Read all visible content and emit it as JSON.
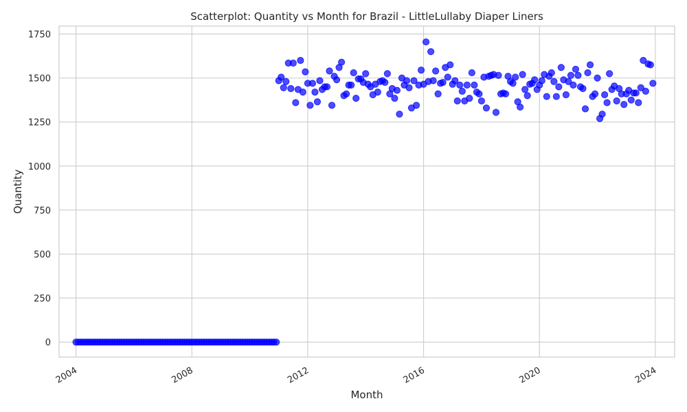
{
  "chart_data": {
    "type": "scatter",
    "title": "Scatterplot: Quantity vs Month for Brazil - LittleLullaby Diaper Liners",
    "xlabel": "Month",
    "ylabel": "Quantity",
    "xlim": [
      "2003-06",
      "2024-09"
    ],
    "ylim": [
      -85,
      1795
    ],
    "x_ticks": [
      "2004",
      "2008",
      "2012",
      "2016",
      "2020",
      "2024"
    ],
    "y_ticks": [
      0,
      250,
      500,
      750,
      1000,
      1250,
      1500,
      1750
    ],
    "grid": true,
    "legend": "none",
    "marker_color": "#0000ff",
    "series": [
      {
        "x": [
          "2004-01",
          "2004-02",
          "2004-03",
          "2004-04",
          "2004-05",
          "2004-06",
          "2004-07",
          "2004-08",
          "2004-09",
          "2004-10",
          "2004-11",
          "2004-12",
          "2005-01",
          "2005-02",
          "2005-03",
          "2005-04",
          "2005-05",
          "2005-06",
          "2005-07",
          "2005-08",
          "2005-09",
          "2005-10",
          "2005-11",
          "2005-12",
          "2006-01",
          "2006-02",
          "2006-03",
          "2006-04",
          "2006-05",
          "2006-06",
          "2006-07",
          "2006-08",
          "2006-09",
          "2006-10",
          "2006-11",
          "2006-12",
          "2007-01",
          "2007-02",
          "2007-03",
          "2007-04",
          "2007-05",
          "2007-06",
          "2007-07",
          "2007-08",
          "2007-09",
          "2007-10",
          "2007-11",
          "2007-12",
          "2008-01",
          "2008-02",
          "2008-03",
          "2008-04",
          "2008-05",
          "2008-06",
          "2008-07",
          "2008-08",
          "2008-09",
          "2008-10",
          "2008-11",
          "2008-12",
          "2009-01",
          "2009-02",
          "2009-03",
          "2009-04",
          "2009-05",
          "2009-06",
          "2009-07",
          "2009-08",
          "2009-09",
          "2009-10",
          "2009-11",
          "2009-12",
          "2010-01",
          "2010-02",
          "2010-03",
          "2010-04",
          "2010-05",
          "2010-06",
          "2010-07",
          "2010-08",
          "2010-09",
          "2010-10",
          "2010-11",
          "2010-12",
          "2011-01",
          "2011-02",
          "2011-03",
          "2011-04",
          "2011-05",
          "2011-06",
          "2011-07",
          "2011-08",
          "2011-09",
          "2011-10",
          "2011-11",
          "2011-12",
          "2012-01",
          "2012-02",
          "2012-03",
          "2012-04",
          "2012-05",
          "2012-06",
          "2012-07",
          "2012-08",
          "2012-09",
          "2012-10",
          "2012-11",
          "2012-12",
          "2013-01",
          "2013-02",
          "2013-03",
          "2013-04",
          "2013-05",
          "2013-06",
          "2013-07",
          "2013-08",
          "2013-09",
          "2013-10",
          "2013-11",
          "2013-12",
          "2014-01",
          "2014-02",
          "2014-03",
          "2014-04",
          "2014-05",
          "2014-06",
          "2014-07",
          "2014-08",
          "2014-09",
          "2014-10",
          "2014-11",
          "2014-12",
          "2015-01",
          "2015-02",
          "2015-03",
          "2015-04",
          "2015-05",
          "2015-06",
          "2015-07",
          "2015-08",
          "2015-09",
          "2015-10",
          "2015-11",
          "2015-12",
          "2016-01",
          "2016-02",
          "2016-03",
          "2016-04",
          "2016-05",
          "2016-06",
          "2016-07",
          "2016-08",
          "2016-09",
          "2016-10",
          "2016-11",
          "2016-12",
          "2017-01",
          "2017-02",
          "2017-03",
          "2017-04",
          "2017-05",
          "2017-06",
          "2017-07",
          "2017-08",
          "2017-09",
          "2017-10",
          "2017-11",
          "2017-12",
          "2018-01",
          "2018-02",
          "2018-03",
          "2018-04",
          "2018-05",
          "2018-06",
          "2018-07",
          "2018-08",
          "2018-09",
          "2018-10",
          "2018-11",
          "2018-12",
          "2019-01",
          "2019-02",
          "2019-03",
          "2019-04",
          "2019-05",
          "2019-06",
          "2019-07",
          "2019-08",
          "2019-09",
          "2019-10",
          "2019-11",
          "2019-12",
          "2020-01",
          "2020-02",
          "2020-03",
          "2020-04",
          "2020-05",
          "2020-06",
          "2020-07",
          "2020-08",
          "2020-09",
          "2020-10",
          "2020-11",
          "2020-12",
          "2021-01",
          "2021-02",
          "2021-03",
          "2021-04",
          "2021-05",
          "2021-06",
          "2021-07",
          "2021-08",
          "2021-09",
          "2021-10",
          "2021-11",
          "2021-12",
          "2022-01",
          "2022-02",
          "2022-03",
          "2022-04",
          "2022-05",
          "2022-06",
          "2022-07",
          "2022-08",
          "2022-09",
          "2022-10",
          "2022-11",
          "2022-12",
          "2023-01",
          "2023-02",
          "2023-03",
          "2023-04",
          "2023-05",
          "2023-06",
          "2023-07",
          "2023-08",
          "2023-09",
          "2023-10",
          "2023-11",
          "2023-12"
        ],
        "y": [
          0,
          0,
          0,
          0,
          0,
          0,
          0,
          0,
          0,
          0,
          0,
          0,
          0,
          0,
          0,
          0,
          0,
          0,
          0,
          0,
          0,
          0,
          0,
          0,
          0,
          0,
          0,
          0,
          0,
          0,
          0,
          0,
          0,
          0,
          0,
          0,
          0,
          0,
          0,
          0,
          0,
          0,
          0,
          0,
          0,
          0,
          0,
          0,
          0,
          0,
          0,
          0,
          0,
          0,
          0,
          0,
          0,
          0,
          0,
          0,
          0,
          0,
          0,
          0,
          0,
          0,
          0,
          0,
          0,
          0,
          0,
          0,
          0,
          0,
          0,
          0,
          0,
          0,
          0,
          0,
          0,
          0,
          0,
          0,
          1485,
          1505,
          1445,
          1480,
          1585,
          1440,
          1585,
          1360,
          1435,
          1600,
          1420,
          1535,
          1470,
          1345,
          1470,
          1420,
          1365,
          1485,
          1435,
          1450,
          1450,
          1540,
          1345,
          1510,
          1490,
          1560,
          1590,
          1400,
          1410,
          1460,
          1460,
          1530,
          1385,
          1495,
          1495,
          1475,
          1525,
          1465,
          1450,
          1405,
          1465,
          1420,
          1480,
          1485,
          1475,
          1525,
          1410,
          1440,
          1385,
          1430,
          1295,
          1500,
          1460,
          1485,
          1445,
          1330,
          1485,
          1345,
          1460,
          1545,
          1465,
          1705,
          1480,
          1650,
          1485,
          1540,
          1410,
          1470,
          1475,
          1560,
          1505,
          1575,
          1465,
          1485,
          1370,
          1460,
          1425,
          1370,
          1460,
          1385,
          1530,
          1460,
          1420,
          1410,
          1370,
          1505,
          1330,
          1510,
          1515,
          1520,
          1305,
          1515,
          1410,
          1415,
          1410,
          1510,
          1480,
          1470,
          1505,
          1365,
          1335,
          1520,
          1435,
          1400,
          1465,
          1470,
          1490,
          1435,
          1460,
          1485,
          1520,
          1395,
          1510,
          1530,
          1480,
          1395,
          1450,
          1560,
          1490,
          1405,
          1480,
          1515,
          1460,
          1550,
          1515,
          1450,
          1440,
          1325,
          1530,
          1575,
          1395,
          1410,
          1500,
          1270,
          1295,
          1405,
          1360,
          1525,
          1435,
          1455,
          1370,
          1440,
          1410,
          1350,
          1410,
          1430,
          1375,
          1415,
          1415,
          1360,
          1445,
          1600,
          1425,
          1580,
          1575,
          1470
        ]
      }
    ]
  }
}
